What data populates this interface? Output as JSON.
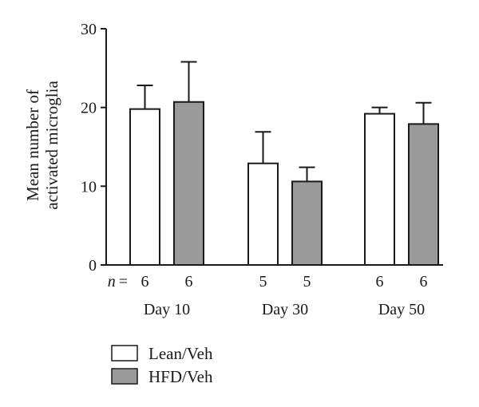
{
  "chart_data": {
    "type": "bar",
    "categories": [
      "Day 10",
      "Day 30",
      "Day 50"
    ],
    "series": [
      {
        "name": "Lean/Veh",
        "values": [
          19.8,
          12.9,
          19.2
        ],
        "errors": [
          3.0,
          4.0,
          0.8
        ],
        "n": [
          "6",
          "5",
          "6"
        ],
        "color": "#ffffff"
      },
      {
        "name": "HFD/Veh",
        "values": [
          20.7,
          10.6,
          17.9
        ],
        "errors": [
          5.1,
          1.8,
          2.7
        ],
        "n": [
          "6",
          "5",
          "6"
        ],
        "color": "#9a9a9a"
      }
    ],
    "ylabel_lines": [
      "Mean number of",
      "activated microglia"
    ],
    "n_prefix": "n",
    "n_equals": "= ",
    "yticks": [
      0,
      10,
      20,
      30
    ],
    "ylim": [
      0,
      30
    ],
    "legend_position": "bottom-left"
  }
}
